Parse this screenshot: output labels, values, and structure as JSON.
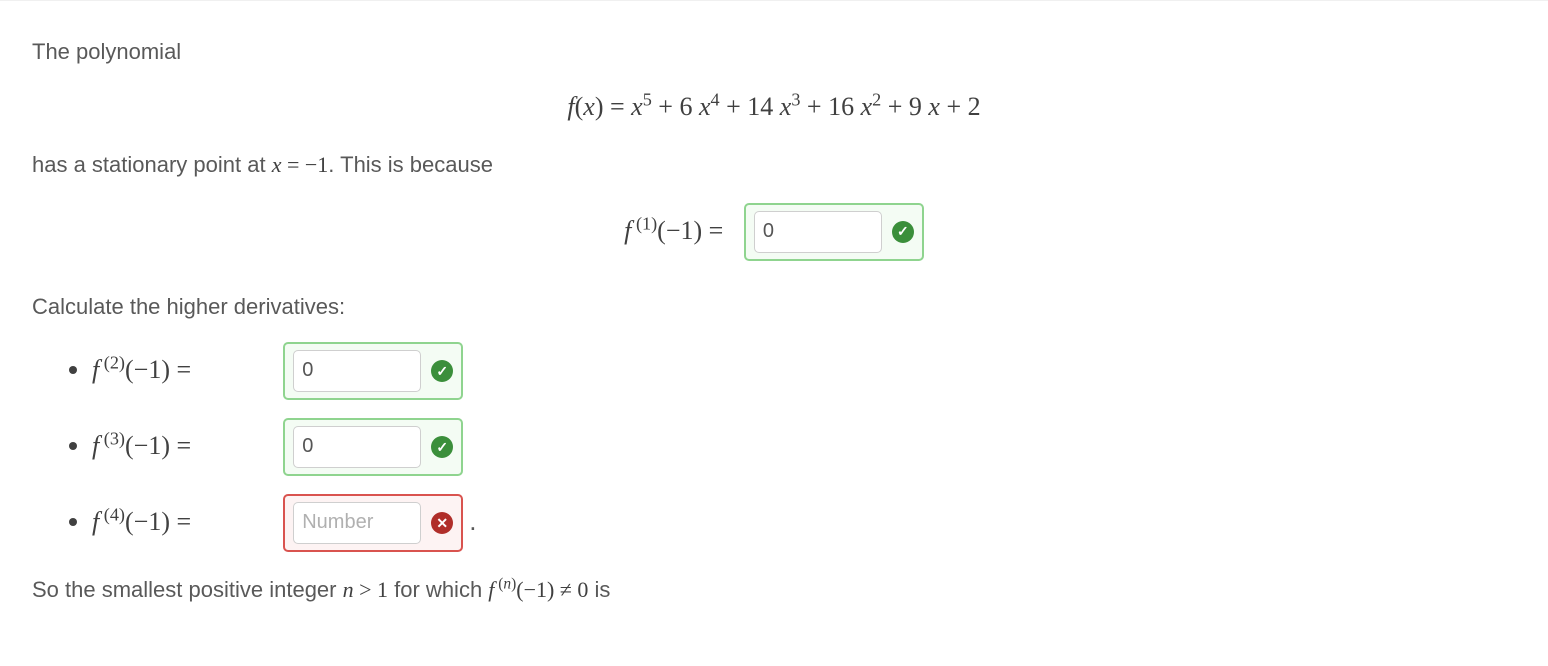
{
  "intro_text": "The polynomial",
  "polynomial_parts": {
    "lhs": "f(x) = ",
    "rhs": "x^5 + 6x^4 + 14x^3 + 16x^2 + 9x + 2"
  },
  "stationary_text_pre": "has a stationary point at ",
  "stationary_point": "x = −1",
  "stationary_text_post": ".  This is because",
  "f1_label": "f^(1)(−1) = ",
  "f1_answer": {
    "value": "0",
    "placeholder": "Number",
    "status": "correct"
  },
  "calc_text": "Calculate the higher derivatives:",
  "derivatives": [
    {
      "order": "2",
      "label": "f^(2)(−1) = ",
      "value": "0",
      "placeholder": "Number",
      "status": "correct",
      "trailing": ""
    },
    {
      "order": "3",
      "label": "f^(3)(−1) = ",
      "value": "0",
      "placeholder": "Number",
      "status": "correct",
      "trailing": ""
    },
    {
      "order": "4",
      "label": "f^(4)(−1) = ",
      "value": "",
      "placeholder": "Number",
      "status": "incorrect",
      "trailing": "."
    }
  ],
  "conclusion_pre": "So the smallest positive integer ",
  "conclusion_var": "n > 1",
  "conclusion_mid": "  for which ",
  "conclusion_expr": "f^(n)(−1) ≠ 0",
  "conclusion_post": " is",
  "colors": {
    "text": "#595959",
    "math": "#404040",
    "correct_border": "#8fd48f",
    "incorrect_border": "#d9534f",
    "ok_badge": "#3b8f3b",
    "bad_badge": "#b02e2a",
    "input_border": "#cfcfcf",
    "background": "#ffffff"
  }
}
